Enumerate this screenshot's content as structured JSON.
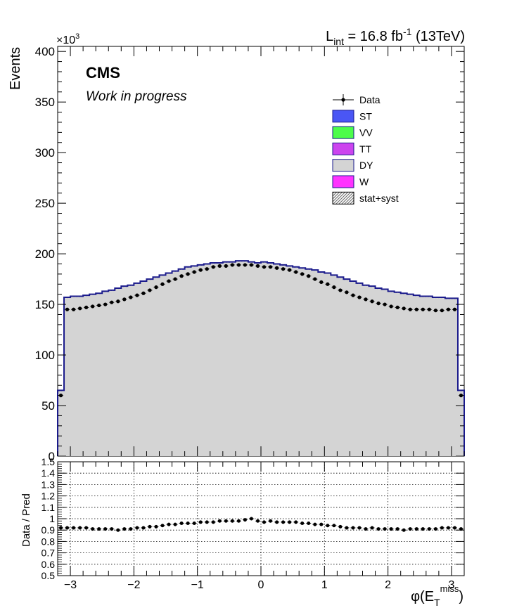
{
  "header": {
    "lumi_prefix": "L",
    "lumi_sub": "int",
    "lumi_mid": " = 16.8 fb",
    "lumi_sup": "-1",
    "lumi_suffix": " (13TeV)",
    "cms": "CMS",
    "work": "Work in progress"
  },
  "legend": [
    {
      "label": "Data",
      "kind": "data",
      "color": "#000000"
    },
    {
      "label": "ST",
      "kind": "box",
      "color": "#4a56f5"
    },
    {
      "label": "VV",
      "kind": "box",
      "color": "#4cfd4a"
    },
    {
      "label": "TT",
      "kind": "box",
      "color": "#cc44ee"
    },
    {
      "label": "DY",
      "kind": "box",
      "color": "#d4d4d4"
    },
    {
      "label": "W",
      "kind": "box",
      "color": "#ff33ff"
    },
    {
      "label": "stat+syst",
      "kind": "hatch",
      "color": "#999999"
    }
  ],
  "chart_data": [
    {
      "type": "area",
      "ylabel": "Events",
      "y_multiplier": "×10",
      "y_multiplier_exp": "3",
      "xlim": [
        -3.2,
        3.2
      ],
      "ylim": [
        0,
        405
      ],
      "yticks": [
        0,
        50,
        100,
        150,
        200,
        250,
        300,
        350,
        400
      ],
      "bin_edges": [
        -3.2,
        -3.1,
        -3.0,
        -2.9,
        -2.8,
        -2.7,
        -2.6,
        -2.5,
        -2.4,
        -2.3,
        -2.2,
        -2.1,
        -2.0,
        -1.9,
        -1.8,
        -1.7,
        -1.6,
        -1.5,
        -1.4,
        -1.3,
        -1.2,
        -1.1,
        -1.0,
        -0.9,
        -0.8,
        -0.7,
        -0.6,
        -0.5,
        -0.4,
        -0.3,
        -0.2,
        -0.1,
        0.0,
        0.1,
        0.2,
        0.3,
        0.4,
        0.5,
        0.6,
        0.7,
        0.8,
        0.9,
        1.0,
        1.1,
        1.2,
        1.3,
        1.4,
        1.5,
        1.6,
        1.7,
        1.8,
        1.9,
        2.0,
        2.1,
        2.2,
        2.3,
        2.4,
        2.5,
        2.6,
        2.7,
        2.8,
        2.9,
        3.0,
        3.1,
        3.2
      ],
      "stack": [
        65,
        157,
        158,
        158,
        159,
        160,
        161,
        163,
        164,
        166,
        168,
        169,
        171,
        173,
        175,
        177,
        179,
        181,
        183,
        185,
        187,
        188,
        189,
        190,
        191,
        191,
        192,
        192,
        193,
        193,
        192,
        191,
        192,
        191,
        190,
        189,
        188,
        187,
        186,
        185,
        184,
        182,
        181,
        179,
        177,
        175,
        173,
        171,
        169,
        168,
        166,
        165,
        163,
        162,
        161,
        160,
        159,
        158,
        158,
        157,
        157,
        156,
        156,
        65
      ],
      "data": [
        60,
        145,
        145,
        146,
        147,
        148,
        149,
        150,
        152,
        153,
        155,
        157,
        159,
        161,
        164,
        167,
        170,
        173,
        175,
        178,
        180,
        182,
        184,
        185,
        187,
        188,
        188,
        189,
        189,
        189,
        189,
        188,
        187,
        187,
        186,
        185,
        184,
        182,
        180,
        178,
        175,
        172,
        170,
        167,
        164,
        162,
        159,
        157,
        155,
        153,
        151,
        150,
        148,
        147,
        146,
        145,
        145,
        145,
        145,
        144,
        144,
        145,
        145,
        60
      ]
    },
    {
      "type": "scatter",
      "xlabel": "φ(E",
      "xlabel_sub": "T",
      "xlabel_sup": "miss",
      "xlabel_close": ")",
      "ylabel": "Data / Pred",
      "xlim": [
        -3.2,
        3.2
      ],
      "ylim": [
        0.5,
        1.5
      ],
      "xticks": [
        -3,
        -2,
        -1,
        0,
        1,
        2,
        3
      ],
      "xtick_labels": [
        "−3",
        "−2",
        "−1",
        "0",
        "1",
        "2",
        "3"
      ],
      "yticks": [
        0.5,
        0.6,
        0.7,
        0.8,
        0.9,
        1,
        1.1,
        1.2,
        1.3,
        1.4,
        1.5
      ],
      "ytick_labels": [
        "0.5",
        "0.6",
        "0.7",
        "0.8",
        "0.9",
        "1",
        "1.1",
        "1.2",
        "1.3",
        "1.4",
        "1.5"
      ],
      "ratio": [
        0.92,
        0.92,
        0.92,
        0.92,
        0.92,
        0.91,
        0.91,
        0.91,
        0.91,
        0.9,
        0.91,
        0.91,
        0.92,
        0.92,
        0.93,
        0.93,
        0.94,
        0.95,
        0.95,
        0.96,
        0.96,
        0.96,
        0.97,
        0.97,
        0.97,
        0.98,
        0.98,
        0.98,
        0.98,
        0.99,
        1.0,
        0.98,
        0.97,
        0.98,
        0.97,
        0.97,
        0.97,
        0.97,
        0.96,
        0.96,
        0.95,
        0.95,
        0.94,
        0.94,
        0.93,
        0.92,
        0.92,
        0.92,
        0.91,
        0.92,
        0.91,
        0.91,
        0.91,
        0.91,
        0.9,
        0.91,
        0.91,
        0.91,
        0.91,
        0.91,
        0.92,
        0.92,
        0.92,
        0.91
      ]
    }
  ]
}
